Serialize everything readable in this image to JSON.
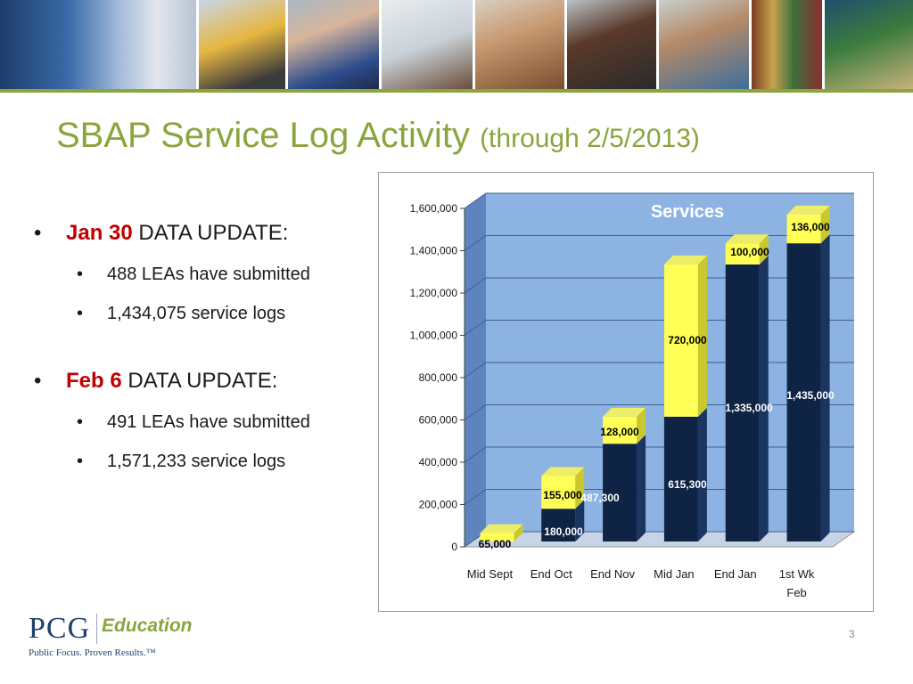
{
  "slide": {
    "title": "SBAP Service Log Activity",
    "title_suffix": "(through 2/5/2013)",
    "page_number": "3",
    "accent_color": "#8ba53e",
    "highlight_color": "#c00000"
  },
  "bullets": [
    {
      "lead": "Jan 30",
      "rest": " DATA UPDATE:",
      "subitems": [
        "488 LEAs have submitted",
        "1,434,075 service logs"
      ]
    },
    {
      "lead": "Feb 6",
      "rest": " DATA UPDATE:",
      "subitems": [
        "491 LEAs have submitted",
        "1,571,233 service logs"
      ]
    }
  ],
  "logo": {
    "brand": "PCG",
    "division": "Education",
    "tagline": "Public Focus. Proven Results.™"
  },
  "banner_photos": [
    "lockers",
    "school-bus",
    "teacher",
    "whiteboard",
    "woman",
    "man",
    "student",
    "bookshelf",
    "globe"
  ],
  "chart_data": {
    "type": "bar",
    "stacked": true,
    "three_d": true,
    "title": "Services",
    "categories": [
      [
        "Mid Sept"
      ],
      [
        "End Oct"
      ],
      [
        "End Nov"
      ],
      [
        "Mid Jan"
      ],
      [
        "End Jan"
      ],
      [
        "1st Wk",
        "Feb"
      ]
    ],
    "series": [
      {
        "values": [
          0,
          180000,
          487300,
          615300,
          1335000,
          1435000
        ],
        "labels": [
          "",
          "180,000",
          "487,300",
          "615,300",
          "1,335,000",
          "1,435,000"
        ],
        "color": "#0f2444"
      },
      {
        "values": [
          65000,
          155000,
          128000,
          720000,
          100000,
          136000
        ],
        "labels": [
          "65,000",
          "155,000",
          "128,000",
          "720,000",
          "100,000",
          "136,000"
        ],
        "color": "#ffff55"
      }
    ],
    "ylim": [
      0,
      1600000
    ],
    "yticks": [
      0,
      200000,
      400000,
      600000,
      800000,
      1000000,
      1200000,
      1400000,
      1600000
    ],
    "ytick_labels": [
      "0",
      "200,000",
      "400,000",
      "600,000",
      "800,000",
      "1,000,000",
      "1,200,000",
      "1,400,000",
      "1,600,000"
    ],
    "grid": true,
    "plot_background": "#8db3e2",
    "side_wall_color": "#5e84bd",
    "legend": "none"
  }
}
